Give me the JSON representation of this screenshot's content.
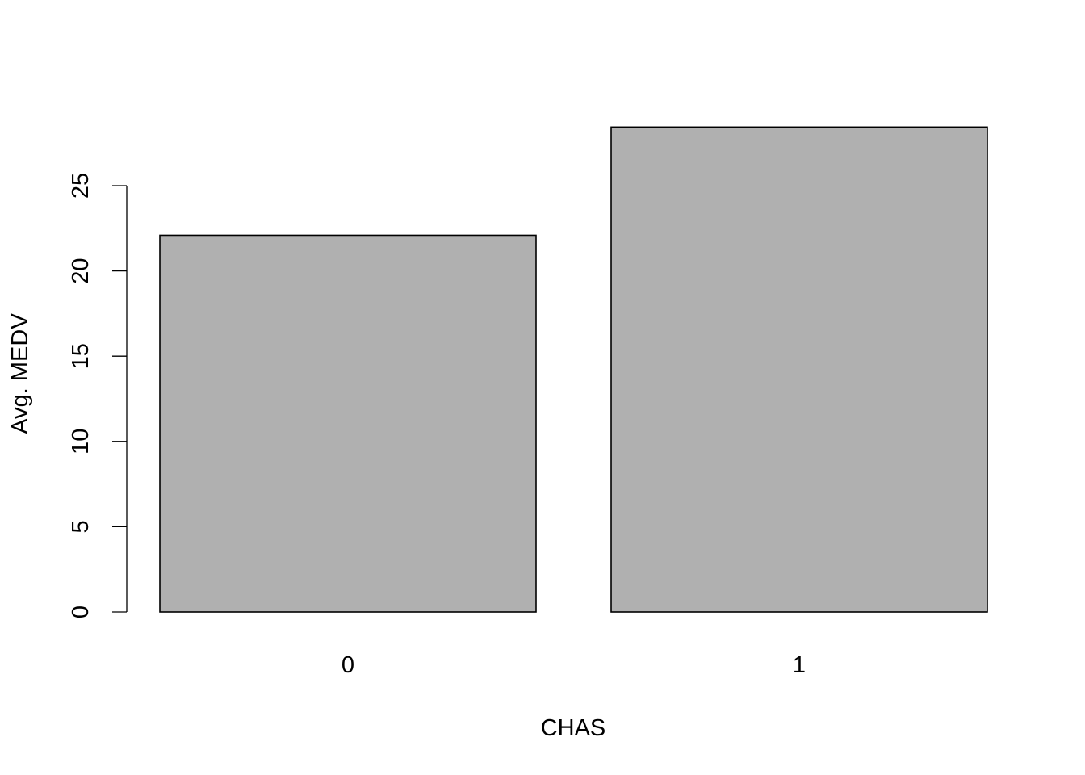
{
  "chart_data": {
    "type": "bar",
    "title": "",
    "xlabel": "CHAS",
    "ylabel": "Avg. MEDV",
    "categories": [
      "0",
      "1"
    ],
    "values": [
      22.09,
      28.44
    ],
    "ylim": [
      0,
      30
    ],
    "yticks": [
      0,
      5,
      10,
      15,
      20,
      25
    ],
    "grid": false,
    "legend": "none",
    "colors": {
      "bar_fill": "#b0b0b0",
      "bar_stroke": "#000000",
      "axis": "#000000",
      "background": "#ffffff"
    }
  }
}
